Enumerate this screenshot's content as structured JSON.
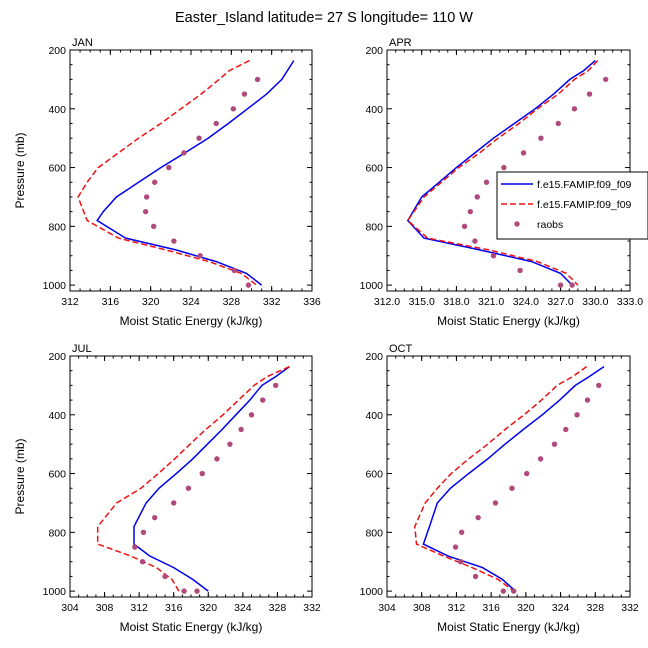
{
  "figure_title": "Easter_Island  latitude= 27 S longitude= 110 W",
  "colors": {
    "model1": "#0000ee",
    "model2": "#ee1111",
    "raobs": "#b04a7a",
    "axis": "#000000"
  },
  "legend": {
    "entries": [
      "f.e15.FAMIP.f09_f09",
      "f.e15.FAMIP.f09_f09",
      "raobs"
    ]
  },
  "chart_data": [
    {
      "type": "line",
      "panel_label": "JAN",
      "xlabel": "Moist Static Energy (kJ/kg)",
      "ylabel": "Pressure (mb)",
      "xlim": [
        312,
        336
      ],
      "ylim": [
        1020,
        200
      ],
      "xticks": [
        312,
        316,
        320,
        324,
        328,
        332,
        336
      ],
      "xtick_labels": [
        "312",
        "316",
        "320",
        "324",
        "328",
        "332",
        "336"
      ],
      "yticks": [
        200,
        400,
        600,
        800,
        1000
      ],
      "ytick_labels": [
        "200",
        "400",
        "600",
        "800",
        "1000"
      ],
      "series": [
        {
          "name": "f.e15.FAMIP.f09_f09",
          "style": "solid",
          "color": "model1",
          "x": [
            334.2,
            333.0,
            331.5,
            329.6,
            327.7,
            325.7,
            323.4,
            321.0,
            318.8,
            316.6,
            315.3,
            314.7,
            317.5,
            322.5,
            326.5,
            329.5,
            331.0
          ],
          "y": [
            236,
            300,
            350,
            400,
            450,
            500,
            550,
            600,
            650,
            700,
            750,
            780,
            840,
            880,
            920,
            960,
            1000
          ]
        },
        {
          "name": "f.e15.FAMIP.f09_f09",
          "style": "dashed",
          "color": "model2",
          "x": [
            329.8,
            327.8,
            326.8,
            325.0,
            323.0,
            321.0,
            318.8,
            316.8,
            314.8,
            313.7,
            312.8,
            313.7,
            316.8,
            321.5,
            325.8,
            329.0,
            330.5
          ],
          "y": [
            236,
            270,
            300,
            350,
            400,
            450,
            500,
            550,
            600,
            650,
            700,
            780,
            840,
            880,
            920,
            960,
            1000
          ]
        },
        {
          "name": "raobs",
          "style": "dots",
          "color": "raobs",
          "x": [
            330.6,
            329.3,
            328.2,
            326.5,
            324.8,
            323.3,
            321.8,
            320.4,
            319.6,
            319.5,
            320.3,
            322.3,
            324.9,
            328.3,
            329.7
          ],
          "y": [
            300,
            350,
            400,
            450,
            500,
            550,
            600,
            650,
            700,
            750,
            800,
            850,
            900,
            950,
            1000
          ]
        }
      ]
    },
    {
      "type": "line",
      "panel_label": "APR",
      "xlabel": "Moist Static Energy (kJ/kg)",
      "ylabel": "",
      "xlim": [
        312,
        333
      ],
      "ylim": [
        1020,
        200
      ],
      "xticks": [
        312,
        315,
        318,
        321,
        324,
        327,
        330,
        333
      ],
      "xtick_labels": [
        "312.0",
        "315.0",
        "318.0",
        "321.0",
        "324.0",
        "327.0",
        "330.0",
        "333.0"
      ],
      "yticks": [
        200,
        400,
        600,
        800,
        1000
      ],
      "ytick_labels": [
        "200",
        "400",
        "600",
        "800",
        "1000"
      ],
      "series": [
        {
          "name": "f.e15.FAMIP.f09_f09",
          "style": "solid",
          "color": "model1",
          "x": [
            330.0,
            329.0,
            327.8,
            326.4,
            324.8,
            323.0,
            321.2,
            319.6,
            318.0,
            316.5,
            315.0,
            313.8,
            315.2,
            320.0,
            324.5,
            327.0,
            328.0
          ],
          "y": [
            236,
            270,
            300,
            350,
            400,
            450,
            500,
            550,
            600,
            650,
            700,
            780,
            840,
            880,
            920,
            960,
            1000
          ]
        },
        {
          "name": "f.e15.FAMIP.f09_f09",
          "style": "dashed",
          "color": "model2",
          "x": [
            330.2,
            329.4,
            328.2,
            326.8,
            325.0,
            323.4,
            321.6,
            320.0,
            318.2,
            316.7,
            315.2,
            313.8,
            315.5,
            320.8,
            325.0,
            327.5,
            328.5
          ],
          "y": [
            236,
            270,
            300,
            350,
            400,
            450,
            500,
            550,
            600,
            650,
            700,
            780,
            840,
            880,
            920,
            960,
            1000
          ]
        },
        {
          "name": "raobs",
          "style": "dots",
          "color": "raobs",
          "x": [
            330.9,
            329.5,
            328.2,
            326.8,
            325.3,
            323.8,
            322.1,
            320.6,
            319.8,
            319.2,
            318.7,
            319.6,
            321.2,
            323.5,
            327.0,
            328.0
          ],
          "y": [
            300,
            350,
            400,
            450,
            500,
            550,
            600,
            650,
            700,
            750,
            800,
            850,
            900,
            950,
            1000,
            1000
          ]
        }
      ]
    },
    {
      "type": "line",
      "panel_label": "JUL",
      "xlabel": "Moist Static Energy (kJ/kg)",
      "ylabel": "Pressure (mb)",
      "xlim": [
        304,
        332
      ],
      "ylim": [
        1020,
        200
      ],
      "xticks": [
        304,
        308,
        312,
        316,
        320,
        324,
        328,
        332
      ],
      "xtick_labels": [
        "304",
        "308",
        "312",
        "316",
        "320",
        "324",
        "328",
        "332"
      ],
      "yticks": [
        200,
        400,
        600,
        800,
        1000
      ],
      "ytick_labels": [
        "200",
        "400",
        "600",
        "800",
        "1000"
      ],
      "series": [
        {
          "name": "f.e15.FAMIP.f09_f09",
          "style": "solid",
          "color": "model1",
          "x": [
            329.4,
            327.8,
            326.2,
            324.8,
            323.2,
            321.6,
            319.9,
            318.2,
            316.3,
            314.3,
            312.8,
            311.4,
            311.4,
            313.2,
            316.0,
            318.2,
            320.0
          ],
          "y": [
            236,
            270,
            300,
            350,
            400,
            450,
            500,
            550,
            600,
            650,
            700,
            780,
            840,
            880,
            920,
            960,
            1000
          ]
        },
        {
          "name": "f.e15.FAMIP.f09_f09",
          "style": "dashed",
          "color": "model2",
          "x": [
            329.4,
            326.8,
            325.3,
            323.5,
            321.7,
            319.7,
            317.9,
            316.1,
            314.2,
            312.2,
            309.4,
            307.2,
            307.2,
            311.0,
            314.0,
            315.8,
            316.6
          ],
          "y": [
            236,
            270,
            300,
            350,
            400,
            450,
            500,
            550,
            600,
            650,
            700,
            780,
            840,
            880,
            920,
            960,
            1000
          ]
        },
        {
          "name": "raobs",
          "style": "dots",
          "color": "raobs",
          "x": [
            327.8,
            326.3,
            325.0,
            323.8,
            322.5,
            321.0,
            319.3,
            317.7,
            316.0,
            313.8,
            312.5,
            311.5,
            312.4,
            315.0,
            317.2,
            318.7
          ],
          "y": [
            300,
            350,
            400,
            450,
            500,
            550,
            600,
            650,
            700,
            750,
            800,
            850,
            900,
            950,
            1000,
            1000
          ]
        }
      ]
    },
    {
      "type": "line",
      "panel_label": "OCT",
      "xlabel": "Moist Static Energy (kJ/kg)",
      "ylabel": "",
      "xlim": [
        304,
        332
      ],
      "ylim": [
        1020,
        200
      ],
      "xticks": [
        304,
        308,
        312,
        316,
        320,
        324,
        328,
        332
      ],
      "xtick_labels": [
        "304",
        "308",
        "312",
        "316",
        "320",
        "324",
        "328",
        "332"
      ],
      "yticks": [
        200,
        400,
        600,
        800,
        1000
      ],
      "ytick_labels": [
        "200",
        "400",
        "600",
        "800",
        "1000"
      ],
      "series": [
        {
          "name": "f.e15.FAMIP.f09_f09",
          "style": "solid",
          "color": "model1",
          "x": [
            329.0,
            327.3,
            325.7,
            323.9,
            321.9,
            319.7,
            317.6,
            315.6,
            313.4,
            311.3,
            309.8,
            308.9,
            308.2,
            311.0,
            315.0,
            317.3,
            318.8
          ],
          "y": [
            236,
            270,
            300,
            350,
            400,
            450,
            500,
            550,
            600,
            650,
            700,
            780,
            840,
            880,
            920,
            960,
            1000
          ]
        },
        {
          "name": "f.e15.FAMIP.f09_f09",
          "style": "dashed",
          "color": "model2",
          "x": [
            327.0,
            325.4,
            323.6,
            321.8,
            319.8,
            317.6,
            315.6,
            313.4,
            311.4,
            309.8,
            308.4,
            307.2,
            307.4,
            310.5,
            313.8,
            316.8,
            318.6
          ],
          "y": [
            236,
            270,
            300,
            350,
            400,
            450,
            500,
            550,
            600,
            650,
            700,
            780,
            840,
            880,
            920,
            960,
            1000
          ]
        },
        {
          "name": "raobs",
          "style": "dots",
          "color": "raobs",
          "x": [
            328.4,
            327.1,
            325.9,
            324.6,
            323.3,
            321.7,
            320.1,
            318.4,
            316.5,
            314.5,
            312.6,
            311.9,
            312.5,
            314.2,
            317.4,
            318.6
          ],
          "y": [
            300,
            350,
            400,
            450,
            500,
            550,
            600,
            650,
            700,
            750,
            800,
            850,
            900,
            950,
            1000,
            1000
          ]
        }
      ]
    }
  ]
}
